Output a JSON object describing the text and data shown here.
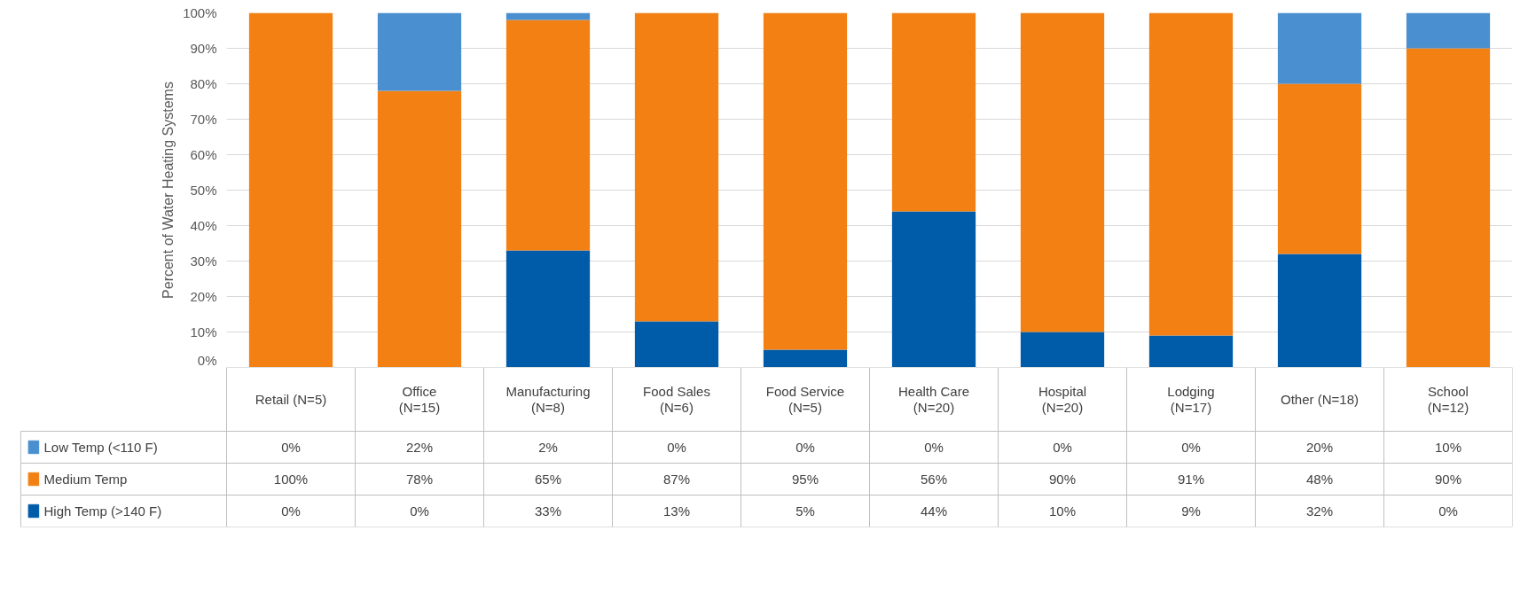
{
  "chart_data": {
    "type": "bar",
    "stacked": true,
    "ylabel": "Percent of Water Heating Systems",
    "categories": [
      "Retail (N=5)",
      "Office (N=15)",
      "Manufacturing (N=8)",
      "Food Sales (N=6)",
      "Food Service (N=5)",
      "Health Care (N=20)",
      "Hospital (N=20)",
      "Lodging (N=17)",
      "Other (N=18)",
      "School (N=12)"
    ],
    "series": [
      {
        "name": "High Temp (>140 F)",
        "color": "#005ca9",
        "values": [
          0,
          0,
          33,
          13,
          5,
          44,
          10,
          9,
          32,
          0
        ],
        "value_labels": [
          "0%",
          "0%",
          "33%",
          "13%",
          "5%",
          "44%",
          "10%",
          "9%",
          "32%",
          "0%"
        ]
      },
      {
        "name": "Medium Temp",
        "color": "#f28013",
        "values": [
          100,
          78,
          65,
          87,
          95,
          56,
          90,
          91,
          48,
          90
        ],
        "value_labels": [
          "100%",
          "78%",
          "65%",
          "87%",
          "95%",
          "56%",
          "90%",
          "91%",
          "48%",
          "90%"
        ]
      },
      {
        "name": "Low Temp (<110 F)",
        "color": "#4a8fd0",
        "values": [
          0,
          22,
          2,
          0,
          0,
          0,
          0,
          0,
          20,
          10
        ],
        "value_labels": [
          "0%",
          "22%",
          "2%",
          "0%",
          "0%",
          "0%",
          "0%",
          "0%",
          "20%",
          "10%"
        ]
      }
    ],
    "ylim": [
      0,
      100
    ],
    "yticks": [
      {
        "value": 0,
        "label": "0%"
      },
      {
        "value": 10,
        "label": "10%"
      },
      {
        "value": 20,
        "label": "20%"
      },
      {
        "value": 30,
        "label": "30%"
      },
      {
        "value": 40,
        "label": "40%"
      },
      {
        "value": 50,
        "label": "50%"
      },
      {
        "value": 60,
        "label": "60%"
      },
      {
        "value": 70,
        "label": "70%"
      },
      {
        "value": 80,
        "label": "80%"
      },
      {
        "value": 90,
        "label": "90%"
      },
      {
        "value": 100,
        "label": "100%"
      }
    ],
    "grid": "y",
    "legend": "bottom"
  }
}
